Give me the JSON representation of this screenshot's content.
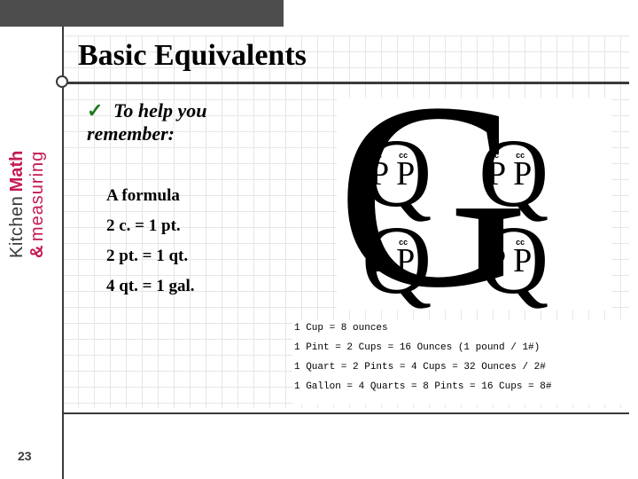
{
  "page_number": "23",
  "title": "Basic Equivalents",
  "bullet": {
    "check": "✓",
    "text": "To help you remember:"
  },
  "formula": {
    "heading": "A formula",
    "line1": "2 c. = 1 pt.",
    "line2": "2 pt. = 1 qt.",
    "line3": "4 qt. = 1 gal."
  },
  "logo": {
    "kitchen": "Kitchen",
    "math": "Math",
    "amp": "&",
    "meas": "measuring"
  },
  "diagram": {
    "big_letter": "G",
    "quart_letter": "Q",
    "pint_letter": "P",
    "cup_label": "cc"
  },
  "equiv": {
    "l1": "1 Cup = 8 ounces",
    "l2": "1 Pint = 2 Cups = 16 Ounces (1 pound / 1#)",
    "l3": "1 Quart = 2 Pints = 4 Cups = 32 Ounces / 2#",
    "l4": "1 Gallon = 4 Quarts = 8 Pints = 16 Cups = 8#"
  },
  "colors": {
    "accent": "#c41a53",
    "rule": "#3a3a3a",
    "grid": "#d7d2cc",
    "check": "#1e7a1e"
  }
}
